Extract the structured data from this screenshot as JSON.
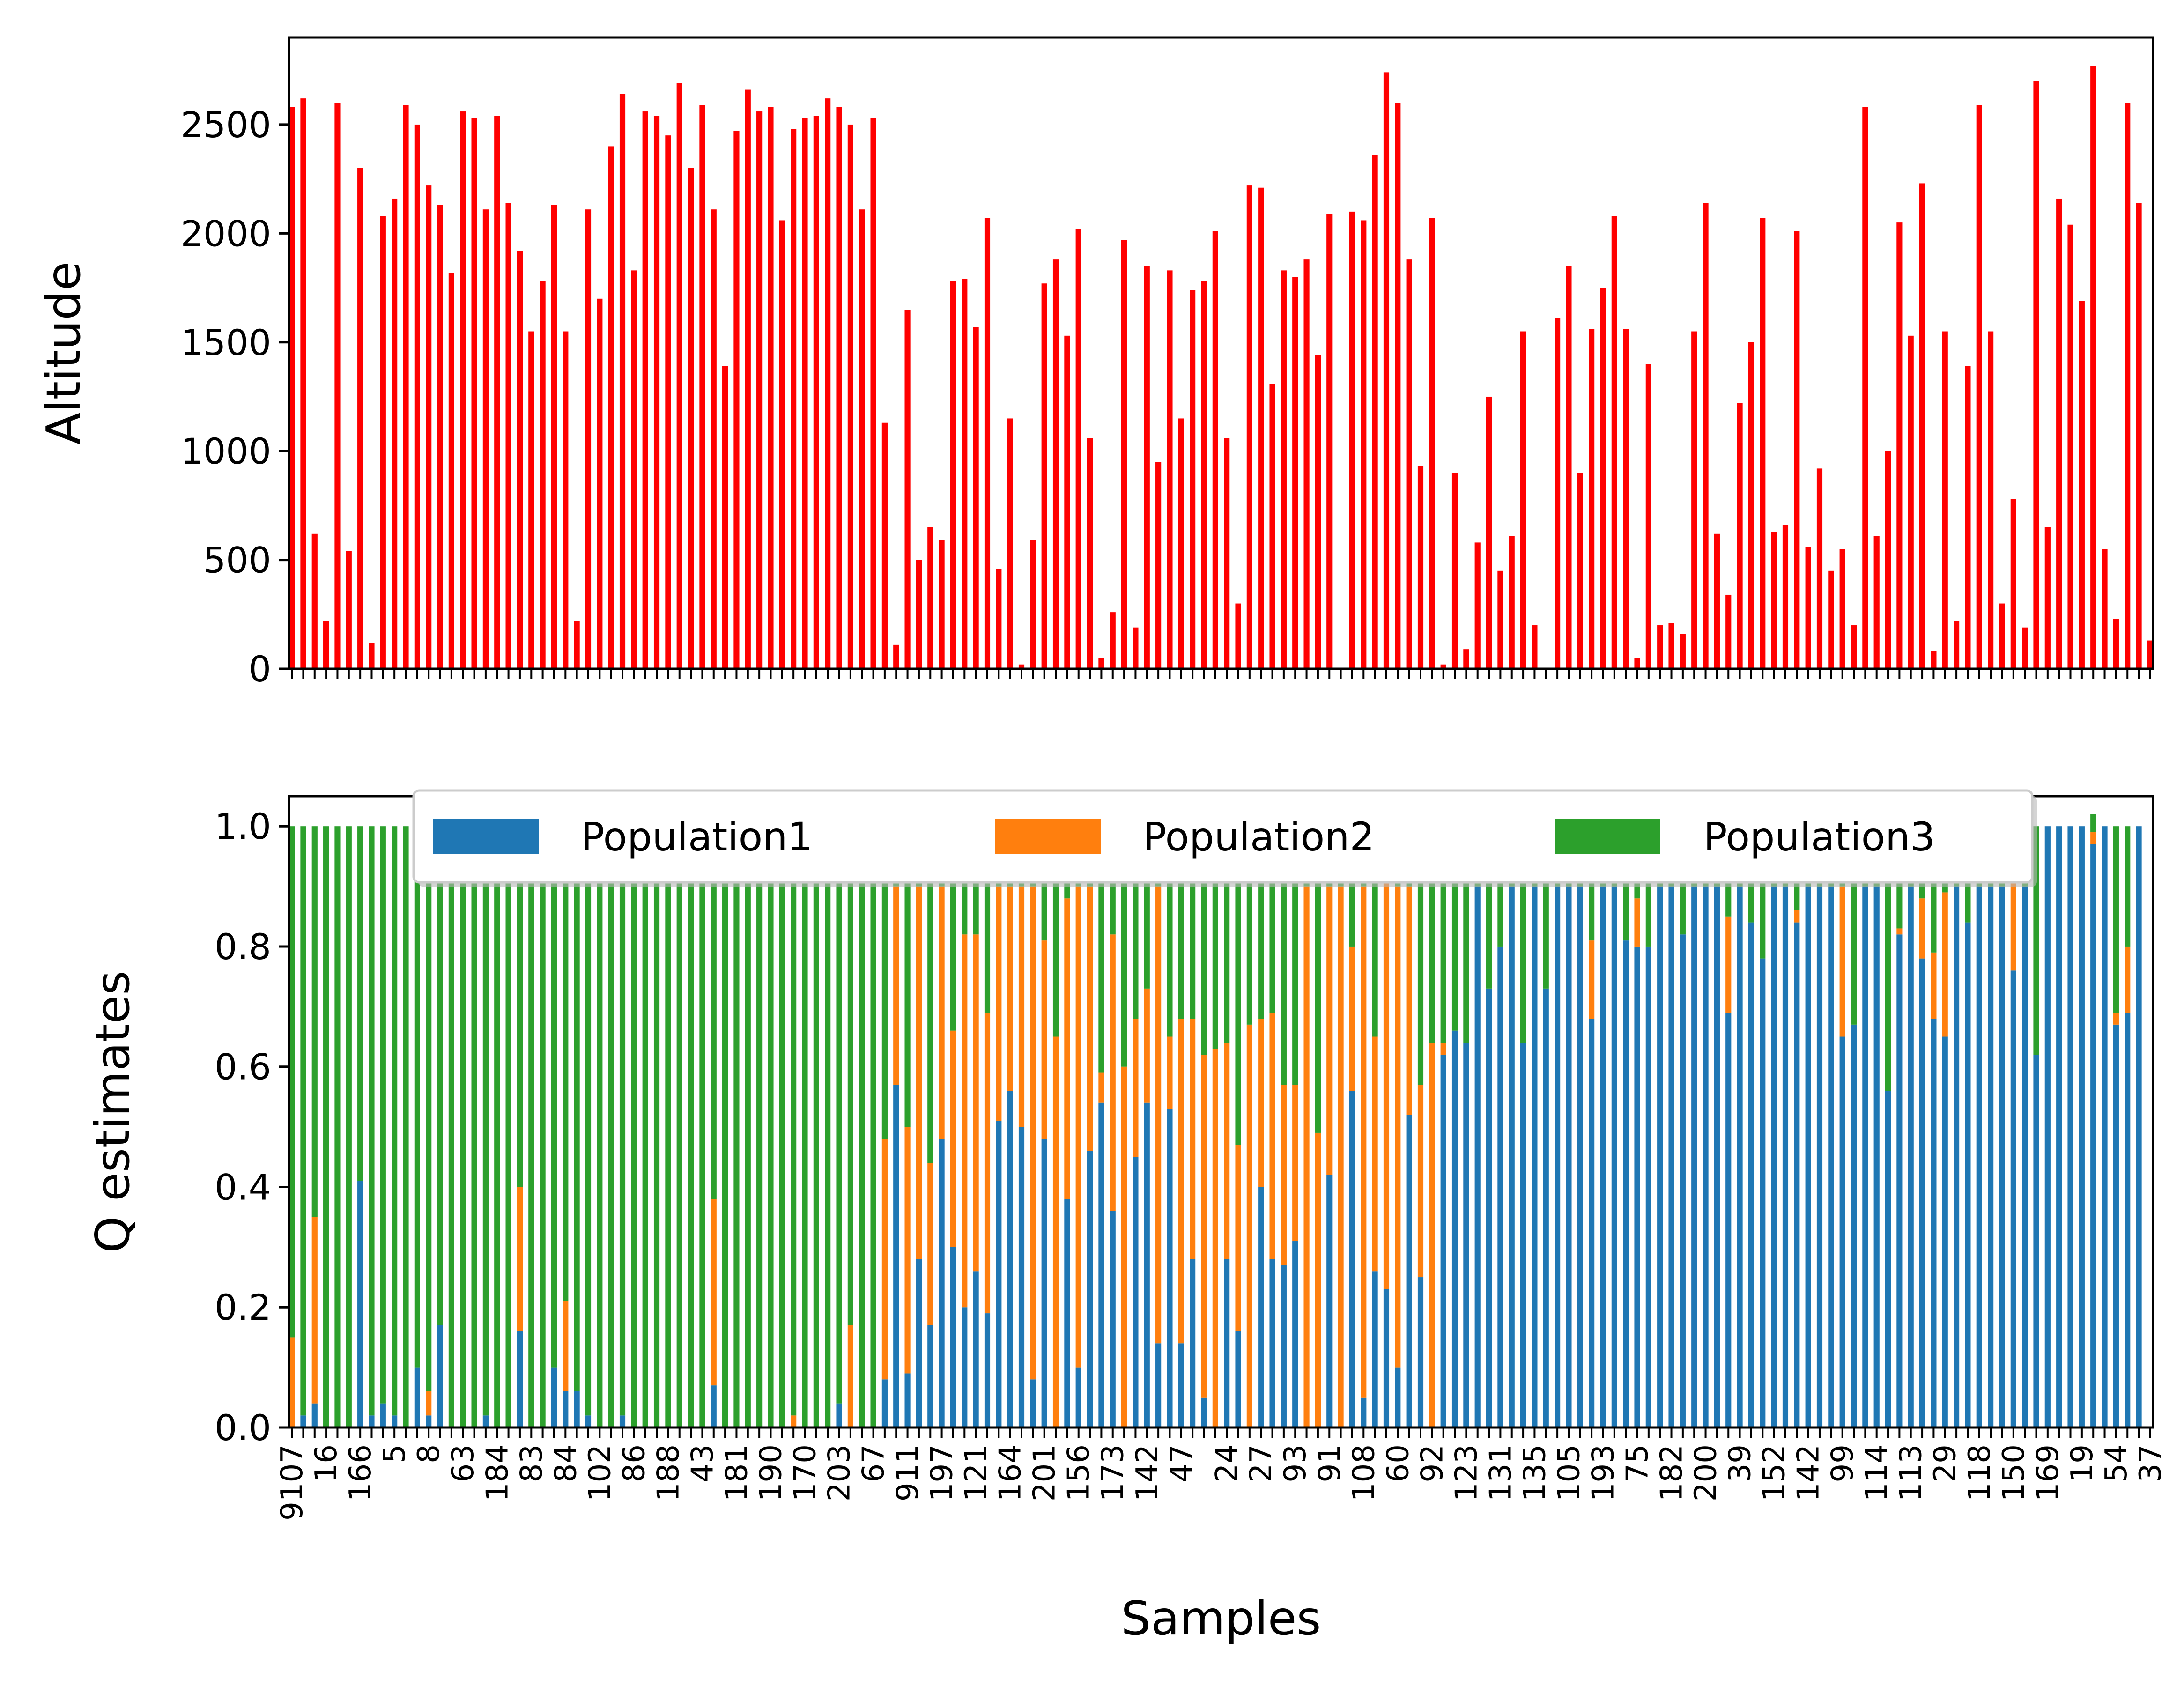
{
  "chart_data": [
    {
      "type": "bar",
      "ylabel": "Altitude",
      "xlabel": "",
      "ylim": [
        0,
        2900
      ],
      "yticks": [
        0,
        500,
        1000,
        1500,
        2000,
        2500
      ],
      "color": "#ff0000",
      "n_samples": 163,
      "values": [
        2580,
        2620,
        620,
        220,
        2600,
        540,
        2300,
        120,
        2080,
        2160,
        2590,
        2500,
        2220,
        2130,
        1820,
        2560,
        2530,
        2110,
        2540,
        2140,
        1920,
        1550,
        1780,
        2130,
        1550,
        220,
        2110,
        1700,
        2400,
        2640,
        1830,
        2560,
        2540,
        2450,
        2690,
        2300,
        2590,
        2110,
        1390,
        2470,
        2660,
        2560,
        2580,
        2060,
        2480,
        2530,
        2540,
        2620,
        2580,
        2500,
        2110,
        2530,
        1130,
        110,
        1650,
        500,
        650,
        590,
        1780,
        1790,
        1570,
        2070,
        460,
        1150,
        20,
        590,
        1770,
        1880,
        1530,
        2020,
        1060,
        50,
        260,
        1970,
        190,
        1850,
        950,
        1830,
        1150,
        1740,
        1780,
        2010,
        1060,
        300,
        2220,
        2210,
        1310,
        1830,
        1800,
        1880,
        1440,
        2090,
        0,
        2100,
        2060,
        2360,
        2740,
        2600,
        1880,
        930,
        2070,
        20,
        900,
        90,
        580,
        1250,
        450,
        610,
        1550,
        200,
        0,
        1610,
        1850,
        900,
        1560,
        1750,
        2080,
        1560,
        50,
        1400,
        200,
        210,
        160,
        1550,
        2140,
        620,
        340,
        1220,
        1500,
        2070,
        630,
        660,
        2010,
        560,
        920,
        450,
        550,
        200,
        2580,
        610,
        1000,
        2050,
        1530,
        2230,
        80,
        1550,
        220,
        1390,
        2590,
        1550,
        300,
        780,
        190,
        2700,
        650,
        2160,
        2040,
        1690,
        2770,
        550,
        230,
        2600,
        2140,
        130
      ]
    },
    {
      "type": "bar",
      "stacked": true,
      "xlabel": "Samples",
      "ylabel": "Q estimates",
      "ylim": [
        0,
        1.05
      ],
      "yticks": [
        "0.0",
        "0.2",
        "0.4",
        "0.6",
        "0.8",
        "1.0"
      ],
      "legend": {
        "placement": "top-center",
        "columns": 3
      },
      "series": [
        {
          "name": "Population1",
          "color": "#1f77b4",
          "values": [
            0.0,
            0.02,
            0.04,
            0.0,
            0.0,
            0.0,
            0.41,
            0.02,
            0.04,
            0.02,
            0.0,
            0.1,
            0.02,
            0.17,
            0.0,
            0.0,
            0.0,
            0.02,
            0.0,
            0.0,
            0.16,
            0.0,
            0.0,
            0.1,
            0.06,
            0.06,
            0.02,
            0.0,
            0.0,
            0.02,
            0.0,
            0.0,
            0.0,
            0.0,
            0.0,
            0.0,
            0.0,
            0.07,
            0.0,
            0.0,
            0.0,
            0.0,
            0.0,
            0.0,
            0.0,
            0.0,
            0.0,
            0.0,
            0.04,
            0.0,
            0.0,
            0.0,
            0.08,
            0.57,
            0.09,
            0.28,
            0.17,
            0.48,
            0.3,
            0.2,
            0.26,
            0.19,
            0.51,
            0.56,
            0.5,
            0.08,
            0.48,
            0.0,
            0.38,
            0.1,
            0.46,
            0.54,
            0.36,
            0.0,
            0.45,
            0.54,
            0.14,
            0.53,
            0.14,
            0.28,
            0.05,
            0.0,
            0.28,
            0.16,
            0.0,
            0.4,
            0.28,
            0.27,
            0.31,
            0.0,
            0.0,
            0.42,
            0.0,
            0.56,
            0.05,
            0.26,
            0.23,
            0.1,
            0.52,
            0.25,
            0.0,
            0.62,
            0.66,
            0.64,
            0.9,
            0.73,
            0.8,
            0.9,
            0.64,
            0.9,
            0.73,
            0.9,
            0.9,
            0.9,
            0.68,
            0.9,
            0.9,
            0.81,
            0.8,
            0.8,
            0.9,
            0.9,
            0.82,
            0.9,
            0.9,
            0.9,
            0.69,
            0.9,
            0.84,
            0.78,
            0.9,
            0.9,
            0.84,
            0.9,
            0.9,
            0.9,
            0.65,
            0.67,
            0.9,
            0.9,
            0.56,
            0.82,
            0.9,
            0.78,
            0.68,
            0.65,
            0.9,
            0.84,
            0.9,
            0.9,
            0.9,
            0.76,
            0.9,
            0.62,
            1.0,
            1.0,
            1.0,
            1.0,
            0.97,
            1.0,
            0.67,
            0.69,
            1.0
          ]
        },
        {
          "name": "Population2",
          "color": "#ff7f0e",
          "values": [
            0.15,
            0.0,
            0.31,
            0.0,
            0.0,
            0.0,
            0.0,
            0.0,
            0.0,
            0.0,
            0.0,
            0.0,
            0.04,
            0.0,
            0.0,
            0.0,
            0.0,
            0.0,
            0.0,
            0.0,
            0.24,
            0.0,
            0.0,
            0.0,
            0.15,
            0.0,
            0.0,
            0.0,
            0.0,
            0.0,
            0.0,
            0.0,
            0.0,
            0.0,
            0.0,
            0.0,
            0.0,
            0.31,
            0.0,
            0.0,
            0.0,
            0.0,
            0.0,
            0.0,
            0.02,
            0.0,
            0.0,
            0.0,
            0.0,
            0.17,
            0.0,
            0.0,
            0.4,
            0.33,
            0.41,
            0.62,
            0.27,
            0.42,
            0.36,
            0.62,
            0.56,
            0.5,
            0.39,
            0.34,
            0.4,
            0.82,
            0.33,
            0.65,
            0.5,
            0.8,
            0.44,
            0.05,
            0.46,
            0.6,
            0.23,
            0.19,
            0.76,
            0.12,
            0.54,
            0.4,
            0.57,
            0.63,
            0.36,
            0.31,
            0.67,
            0.28,
            0.41,
            0.3,
            0.26,
            0.9,
            0.49,
            0.48,
            0.9,
            0.24,
            0.85,
            0.39,
            0.74,
            0.8,
            0.38,
            0.32,
            0.64,
            0.02,
            0.0,
            0.0,
            0.0,
            0.0,
            0.0,
            0.0,
            0.0,
            0.0,
            0.0,
            0.0,
            0.0,
            0.0,
            0.13,
            0.0,
            0.0,
            0.0,
            0.08,
            0.0,
            0.0,
            0.0,
            0.0,
            0.0,
            0.0,
            0.0,
            0.16,
            0.0,
            0.0,
            0.0,
            0.0,
            0.0,
            0.02,
            0.0,
            0.0,
            0.0,
            0.25,
            0.0,
            0.0,
            0.0,
            0.0,
            0.01,
            0.0,
            0.1,
            0.11,
            0.24,
            0.0,
            0.0,
            0.0,
            0.0,
            0.0,
            0.24,
            0.0,
            0.0,
            0.0,
            0.0,
            0.0,
            0.0,
            0.02,
            0.0,
            0.02,
            0.11,
            0.0
          ]
        },
        {
          "name": "Population3",
          "color": "#2ca02c",
          "values": [
            0.85,
            0.98,
            0.65,
            1.0,
            1.0,
            1.0,
            0.59,
            0.98,
            0.96,
            0.98,
            1.0,
            0.9,
            0.94,
            0.83,
            1.0,
            1.0,
            1.0,
            0.98,
            1.0,
            1.0,
            0.6,
            1.0,
            1.0,
            0.9,
            0.79,
            0.94,
            0.98,
            1.0,
            1.0,
            0.98,
            1.0,
            1.0,
            1.0,
            1.0,
            1.0,
            1.0,
            1.0,
            0.62,
            1.0,
            1.0,
            1.0,
            1.0,
            1.0,
            1.0,
            0.98,
            1.0,
            1.0,
            1.0,
            0.96,
            0.83,
            1.0,
            1.0,
            0.52,
            0.1,
            0.5,
            0.1,
            0.56,
            0.1,
            0.34,
            0.18,
            0.18,
            0.31,
            0.1,
            0.1,
            0.1,
            0.1,
            0.19,
            0.35,
            0.12,
            0.1,
            0.1,
            0.41,
            0.18,
            0.4,
            0.32,
            0.27,
            0.1,
            0.35,
            0.32,
            0.32,
            0.38,
            0.37,
            0.36,
            0.53,
            0.33,
            0.32,
            0.31,
            0.43,
            0.43,
            0.1,
            0.51,
            0.1,
            0.1,
            0.2,
            0.1,
            0.35,
            0.03,
            0.1,
            0.1,
            0.43,
            0.36,
            0.36,
            0.34,
            0.36,
            0.1,
            0.27,
            0.2,
            0.1,
            0.36,
            0.1,
            0.27,
            0.1,
            0.1,
            0.1,
            0.19,
            0.1,
            0.1,
            0.19,
            0.12,
            0.2,
            0.1,
            0.1,
            0.18,
            0.1,
            0.1,
            0.1,
            0.15,
            0.1,
            0.16,
            0.22,
            0.1,
            0.1,
            0.14,
            0.1,
            0.1,
            0.1,
            0.1,
            0.33,
            0.1,
            0.1,
            0.44,
            0.17,
            0.1,
            0.12,
            0.21,
            0.11,
            0.1,
            0.16,
            0.1,
            0.1,
            0.1,
            0.0,
            0.1,
            0.38,
            0.0,
            0.0,
            0.0,
            0.0,
            0.03,
            0.0,
            0.31,
            0.2,
            0.0
          ]
        }
      ],
      "xtick_labels": [
        "9107",
        "16",
        "166",
        "5",
        "8",
        "63",
        "184",
        "83",
        "84",
        "102",
        "86",
        "188",
        "43",
        "181",
        "190",
        "170",
        "203",
        "67",
        "911",
        "197",
        "121",
        "164",
        "201",
        "156",
        "173",
        "142",
        "47",
        "24",
        "27",
        "93",
        "91",
        "108",
        "60",
        "92",
        "123",
        "131",
        "135",
        "105",
        "193",
        "75",
        "182",
        "200",
        "39",
        "152",
        "142",
        "99",
        "114",
        "113",
        "29",
        "118",
        "150",
        "169",
        "19",
        "54",
        "37"
      ]
    }
  ]
}
